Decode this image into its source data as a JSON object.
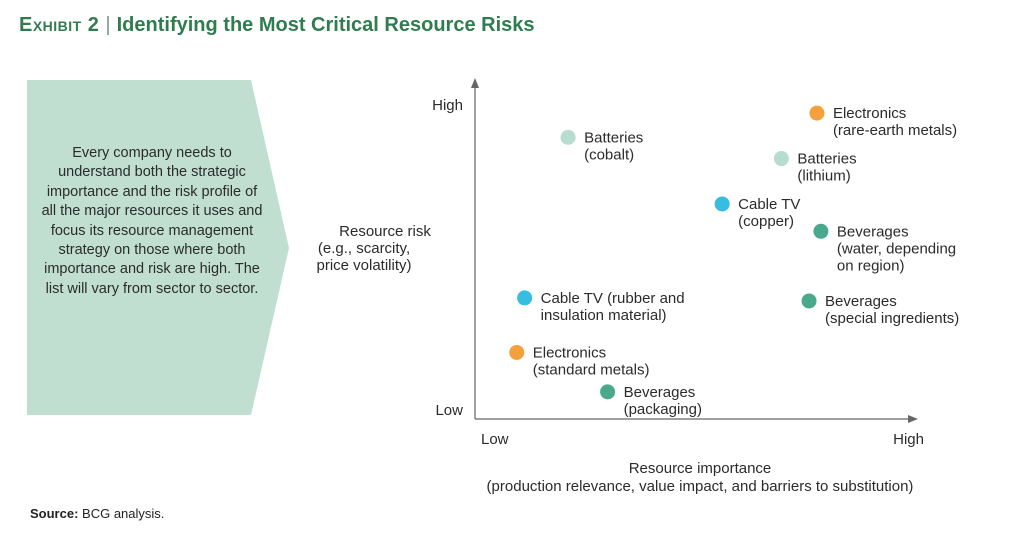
{
  "header": {
    "exhibit_label": "Exhibit 2",
    "title": "Identifying the Most Critical Resource Risks"
  },
  "panel": {
    "text": "Every company needs to understand both the strategic importance and the risk profile of all the major resources it uses and focus its resource management strategy on those where both importance and risk are high. The list will vary from sector to sector."
  },
  "colors": {
    "title": "#2f7d4f",
    "panel": "#c1dfd1",
    "axis": "#666666",
    "electronics": "#f4a13b",
    "batteries": "#b7ddd0",
    "cable": "#36bde0",
    "beverages": "#4aa98a"
  },
  "chart_data": {
    "type": "scatter",
    "xlabel": "Resource importance",
    "xlabel_sub": "(production relevance, value impact, and barriers to substitution)",
    "ylabel": "Resource risk",
    "ylabel_sub": [
      "(e.g., scarcity,",
      "price volatility)"
    ],
    "x_ticks": [
      "Low",
      "High"
    ],
    "y_ticks": [
      "Low",
      "High"
    ],
    "xlim": [
      0,
      100
    ],
    "ylim": [
      0,
      100
    ],
    "points": [
      {
        "label": [
          "Electronics",
          "(rare-earth metals)"
        ],
        "x": 81,
        "y": 97,
        "color_key": "electronics"
      },
      {
        "label": [
          "Batteries",
          "(cobalt)"
        ],
        "x": 18,
        "y": 89,
        "color_key": "batteries"
      },
      {
        "label": [
          "Batteries",
          "(lithium)"
        ],
        "x": 72,
        "y": 82,
        "color_key": "batteries"
      },
      {
        "label": [
          "Cable TV",
          "(copper)"
        ],
        "x": 57,
        "y": 67,
        "color_key": "cable"
      },
      {
        "label": [
          "Beverages",
          "(water, depending",
          "on region)"
        ],
        "x": 82,
        "y": 58,
        "color_key": "beverages"
      },
      {
        "label": [
          "Cable TV (rubber and",
          "insulation material)"
        ],
        "x": 7,
        "y": 36,
        "color_key": "cable"
      },
      {
        "label": [
          "Beverages",
          "(special ingredients)"
        ],
        "x": 79,
        "y": 35,
        "color_key": "beverages"
      },
      {
        "label": [
          "Electronics",
          "(standard metals)"
        ],
        "x": 5,
        "y": 18,
        "color_key": "electronics"
      },
      {
        "label": [
          "Beverages",
          "(packaging)"
        ],
        "x": 28,
        "y": 5,
        "color_key": "beverages"
      }
    ]
  },
  "source": {
    "label": "Source:",
    "text": "BCG analysis."
  }
}
